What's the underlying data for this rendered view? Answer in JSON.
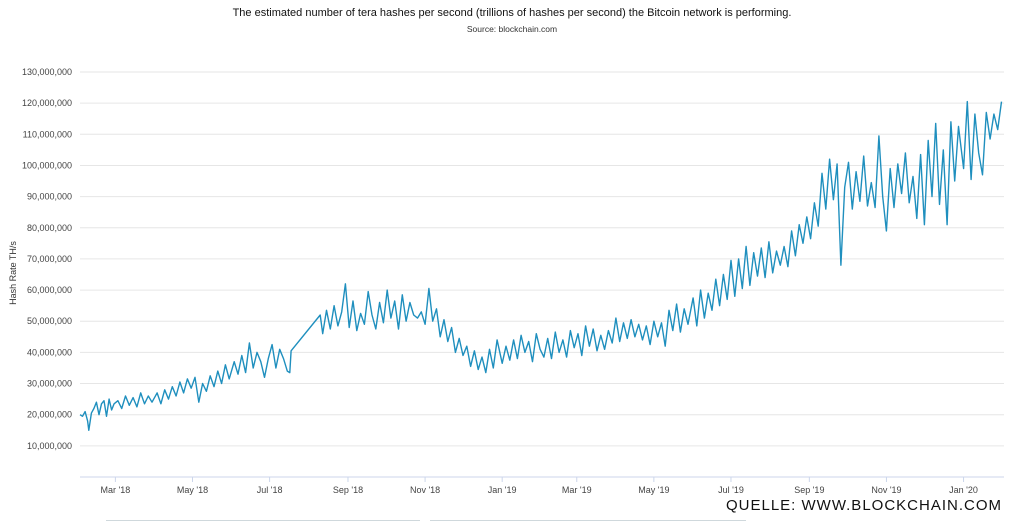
{
  "chart_data": {
    "type": "line",
    "title": "The estimated number of tera hashes per second (trillions of hashes per second) the Bitcoin network is performing.",
    "subtitle": "Source: blockchain.com",
    "ylabel": "Hash Rate TH/s",
    "xlabel": "",
    "ylim": [
      0,
      130000000
    ],
    "yticks": [
      "10,000,000",
      "20,000,000",
      "30,000,000",
      "40,000,000",
      "50,000,000",
      "60,000,000",
      "70,000,000",
      "80,000,000",
      "90,000,000",
      "100,000,000",
      "110,000,000",
      "120,000,000",
      "130,000,000"
    ],
    "ytick_values": [
      10000000,
      20000000,
      30000000,
      40000000,
      50000000,
      60000000,
      70000000,
      80000000,
      90000000,
      100000000,
      110000000,
      120000000,
      130000000
    ],
    "xticks": [
      "Mar '18",
      "May '18",
      "Jul '18",
      "Sep '18",
      "Nov '18",
      "Jan '19",
      "Mar '19",
      "May '19",
      "Jul '19",
      "Sep '19",
      "Nov '19",
      "Jan '20"
    ],
    "xtick_dates": [
      "2018-03-01",
      "2018-05-01",
      "2018-07-01",
      "2018-09-01",
      "2018-11-01",
      "2019-01-01",
      "2019-03-01",
      "2019-05-01",
      "2019-07-01",
      "2019-09-01",
      "2019-11-01",
      "2020-01-01"
    ],
    "xlim": [
      "2018-02-01",
      "2020-02-02"
    ],
    "grid": true,
    "color": "#1f8fbe",
    "series": [
      {
        "values": [
          [
            "2018-02-01",
            20000000
          ],
          [
            "2018-02-03",
            19500000
          ],
          [
            "2018-02-05",
            21000000
          ],
          [
            "2018-02-07",
            18000000
          ],
          [
            "2018-02-08",
            15000000
          ],
          [
            "2018-02-10",
            20500000
          ],
          [
            "2018-02-12",
            22000000
          ],
          [
            "2018-02-14",
            24000000
          ],
          [
            "2018-02-16",
            20000000
          ],
          [
            "2018-02-18",
            23500000
          ],
          [
            "2018-02-20",
            24500000
          ],
          [
            "2018-02-22",
            19500000
          ],
          [
            "2018-02-24",
            25000000
          ],
          [
            "2018-02-26",
            21500000
          ],
          [
            "2018-02-28",
            23500000
          ],
          [
            "2018-03-03",
            24500000
          ],
          [
            "2018-03-06",
            22000000
          ],
          [
            "2018-03-09",
            26000000
          ],
          [
            "2018-03-12",
            23000000
          ],
          [
            "2018-03-15",
            25500000
          ],
          [
            "2018-03-18",
            22500000
          ],
          [
            "2018-03-21",
            27000000
          ],
          [
            "2018-03-24",
            23500000
          ],
          [
            "2018-03-27",
            26000000
          ],
          [
            "2018-03-30",
            24000000
          ],
          [
            "2018-04-03",
            27000000
          ],
          [
            "2018-04-06",
            23500000
          ],
          [
            "2018-04-09",
            28000000
          ],
          [
            "2018-04-12",
            25000000
          ],
          [
            "2018-04-15",
            29000000
          ],
          [
            "2018-04-18",
            26000000
          ],
          [
            "2018-04-21",
            30500000
          ],
          [
            "2018-04-24",
            27000000
          ],
          [
            "2018-04-27",
            31500000
          ],
          [
            "2018-04-30",
            28500000
          ],
          [
            "2018-05-03",
            32000000
          ],
          [
            "2018-05-06",
            24000000
          ],
          [
            "2018-05-09",
            30000000
          ],
          [
            "2018-05-12",
            27500000
          ],
          [
            "2018-05-15",
            32500000
          ],
          [
            "2018-05-18",
            29000000
          ],
          [
            "2018-05-21",
            34000000
          ],
          [
            "2018-05-24",
            30000000
          ],
          [
            "2018-05-27",
            36000000
          ],
          [
            "2018-05-30",
            31500000
          ],
          [
            "2018-06-03",
            37000000
          ],
          [
            "2018-06-06",
            33000000
          ],
          [
            "2018-06-09",
            39000000
          ],
          [
            "2018-06-12",
            33500000
          ],
          [
            "2018-06-15",
            43000000
          ],
          [
            "2018-06-18",
            35000000
          ],
          [
            "2018-06-21",
            40000000
          ],
          [
            "2018-06-24",
            37000000
          ],
          [
            "2018-06-27",
            32000000
          ],
          [
            "2018-06-30",
            38000000
          ],
          [
            "2018-07-03",
            42500000
          ],
          [
            "2018-07-06",
            35000000
          ],
          [
            "2018-07-09",
            41000000
          ],
          [
            "2018-07-12",
            38000000
          ],
          [
            "2018-07-15",
            34000000
          ],
          [
            "2018-07-17",
            33500000
          ],
          [
            "2018-07-18",
            40500000
          ],
          [
            "2018-08-10",
            52000000
          ],
          [
            "2018-08-12",
            46000000
          ],
          [
            "2018-08-15",
            53500000
          ],
          [
            "2018-08-18",
            47500000
          ],
          [
            "2018-08-21",
            55000000
          ],
          [
            "2018-08-24",
            48500000
          ],
          [
            "2018-08-27",
            53000000
          ],
          [
            "2018-08-30",
            62000000
          ],
          [
            "2018-09-02",
            48000000
          ],
          [
            "2018-09-05",
            56500000
          ],
          [
            "2018-09-08",
            47000000
          ],
          [
            "2018-09-11",
            52500000
          ],
          [
            "2018-09-14",
            49000000
          ],
          [
            "2018-09-17",
            59500000
          ],
          [
            "2018-09-20",
            52000000
          ],
          [
            "2018-09-23",
            47500000
          ],
          [
            "2018-09-26",
            56000000
          ],
          [
            "2018-09-29",
            49500000
          ],
          [
            "2018-10-02",
            60000000
          ],
          [
            "2018-10-05",
            51000000
          ],
          [
            "2018-10-08",
            56500000
          ],
          [
            "2018-10-11",
            47500000
          ],
          [
            "2018-10-14",
            58500000
          ],
          [
            "2018-10-17",
            50000000
          ],
          [
            "2018-10-20",
            56000000
          ],
          [
            "2018-10-23",
            52000000
          ],
          [
            "2018-10-26",
            51000000
          ],
          [
            "2018-10-29",
            53000000
          ],
          [
            "2018-11-01",
            49000000
          ],
          [
            "2018-11-04",
            60500000
          ],
          [
            "2018-11-07",
            50000000
          ],
          [
            "2018-11-10",
            54000000
          ],
          [
            "2018-11-13",
            45000000
          ],
          [
            "2018-11-16",
            50500000
          ],
          [
            "2018-11-19",
            43500000
          ],
          [
            "2018-11-22",
            48000000
          ],
          [
            "2018-11-25",
            40000000
          ],
          [
            "2018-11-28",
            44500000
          ],
          [
            "2018-12-01",
            39000000
          ],
          [
            "2018-12-04",
            42000000
          ],
          [
            "2018-12-07",
            35500000
          ],
          [
            "2018-12-10",
            40500000
          ],
          [
            "2018-12-13",
            34500000
          ],
          [
            "2018-12-16",
            38500000
          ],
          [
            "2018-12-19",
            33500000
          ],
          [
            "2018-12-22",
            41000000
          ],
          [
            "2018-12-25",
            35000000
          ],
          [
            "2018-12-28",
            44000000
          ],
          [
            "2019-01-01",
            36500000
          ],
          [
            "2019-01-04",
            42000000
          ],
          [
            "2019-01-07",
            37500000
          ],
          [
            "2019-01-10",
            44000000
          ],
          [
            "2019-01-13",
            38000000
          ],
          [
            "2019-01-16",
            45500000
          ],
          [
            "2019-01-19",
            40000000
          ],
          [
            "2019-01-22",
            43500000
          ],
          [
            "2019-01-25",
            37000000
          ],
          [
            "2019-01-28",
            46000000
          ],
          [
            "2019-01-31",
            41000000
          ],
          [
            "2019-02-03",
            38500000
          ],
          [
            "2019-02-06",
            44500000
          ],
          [
            "2019-02-09",
            38000000
          ],
          [
            "2019-02-12",
            46500000
          ],
          [
            "2019-02-15",
            40000000
          ],
          [
            "2019-02-18",
            44000000
          ],
          [
            "2019-02-21",
            38500000
          ],
          [
            "2019-02-24",
            47000000
          ],
          [
            "2019-02-27",
            41500000
          ],
          [
            "2019-03-02",
            46000000
          ],
          [
            "2019-03-05",
            39000000
          ],
          [
            "2019-03-08",
            48500000
          ],
          [
            "2019-03-11",
            42000000
          ],
          [
            "2019-03-14",
            47500000
          ],
          [
            "2019-03-17",
            40500000
          ],
          [
            "2019-03-20",
            45500000
          ],
          [
            "2019-03-23",
            41000000
          ],
          [
            "2019-03-26",
            47000000
          ],
          [
            "2019-03-29",
            43000000
          ],
          [
            "2019-04-01",
            51000000
          ],
          [
            "2019-04-04",
            43500000
          ],
          [
            "2019-04-07",
            49500000
          ],
          [
            "2019-04-10",
            44500000
          ],
          [
            "2019-04-13",
            50500000
          ],
          [
            "2019-04-16",
            45000000
          ],
          [
            "2019-04-19",
            49000000
          ],
          [
            "2019-04-22",
            44000000
          ],
          [
            "2019-04-25",
            48500000
          ],
          [
            "2019-04-28",
            42500000
          ],
          [
            "2019-05-01",
            50000000
          ],
          [
            "2019-05-04",
            45000000
          ],
          [
            "2019-05-07",
            49500000
          ],
          [
            "2019-05-10",
            42000000
          ],
          [
            "2019-05-13",
            53500000
          ],
          [
            "2019-05-16",
            47000000
          ],
          [
            "2019-05-19",
            55500000
          ],
          [
            "2019-05-22",
            46500000
          ],
          [
            "2019-05-25",
            54000000
          ],
          [
            "2019-05-28",
            49000000
          ],
          [
            "2019-06-01",
            57500000
          ],
          [
            "2019-06-04",
            48500000
          ],
          [
            "2019-06-07",
            60000000
          ],
          [
            "2019-06-10",
            51000000
          ],
          [
            "2019-06-13",
            59000000
          ],
          [
            "2019-06-16",
            53500000
          ],
          [
            "2019-06-19",
            63500000
          ],
          [
            "2019-06-22",
            55000000
          ],
          [
            "2019-06-25",
            65000000
          ],
          [
            "2019-06-28",
            57000000
          ],
          [
            "2019-07-01",
            69500000
          ],
          [
            "2019-07-04",
            58000000
          ],
          [
            "2019-07-07",
            70000000
          ],
          [
            "2019-07-10",
            60500000
          ],
          [
            "2019-07-13",
            74000000
          ],
          [
            "2019-07-16",
            61500000
          ],
          [
            "2019-07-19",
            72000000
          ],
          [
            "2019-07-22",
            64500000
          ],
          [
            "2019-07-25",
            73500000
          ],
          [
            "2019-07-28",
            64000000
          ],
          [
            "2019-07-31",
            75500000
          ],
          [
            "2019-08-03",
            65500000
          ],
          [
            "2019-08-06",
            72500000
          ],
          [
            "2019-08-09",
            68000000
          ],
          [
            "2019-08-12",
            74000000
          ],
          [
            "2019-08-15",
            67500000
          ],
          [
            "2019-08-18",
            79000000
          ],
          [
            "2019-08-21",
            71000000
          ],
          [
            "2019-08-24",
            81000000
          ],
          [
            "2019-08-27",
            75000000
          ],
          [
            "2019-08-30",
            83500000
          ],
          [
            "2019-09-02",
            76500000
          ],
          [
            "2019-09-05",
            88000000
          ],
          [
            "2019-09-08",
            80500000
          ],
          [
            "2019-09-11",
            97500000
          ],
          [
            "2019-09-14",
            86000000
          ],
          [
            "2019-09-17",
            102000000
          ],
          [
            "2019-09-20",
            89000000
          ],
          [
            "2019-09-23",
            100500000
          ],
          [
            "2019-09-26",
            68000000
          ],
          [
            "2019-09-29",
            93000000
          ],
          [
            "2019-10-02",
            101000000
          ],
          [
            "2019-10-05",
            86000000
          ],
          [
            "2019-10-08",
            98000000
          ],
          [
            "2019-10-11",
            88500000
          ],
          [
            "2019-10-14",
            103000000
          ],
          [
            "2019-10-17",
            87000000
          ],
          [
            "2019-10-20",
            94500000
          ],
          [
            "2019-10-23",
            86500000
          ],
          [
            "2019-10-26",
            109500000
          ],
          [
            "2019-10-29",
            90000000
          ],
          [
            "2019-11-01",
            79000000
          ],
          [
            "2019-11-04",
            99000000
          ],
          [
            "2019-11-07",
            86500000
          ],
          [
            "2019-11-10",
            100500000
          ],
          [
            "2019-11-13",
            91000000
          ],
          [
            "2019-11-16",
            104000000
          ],
          [
            "2019-11-19",
            88000000
          ],
          [
            "2019-11-22",
            96500000
          ],
          [
            "2019-11-25",
            83000000
          ],
          [
            "2019-11-28",
            103500000
          ],
          [
            "2019-12-01",
            81000000
          ],
          [
            "2019-12-04",
            108000000
          ],
          [
            "2019-12-07",
            90000000
          ],
          [
            "2019-12-10",
            113500000
          ],
          [
            "2019-12-13",
            87500000
          ],
          [
            "2019-12-16",
            105000000
          ],
          [
            "2019-12-19",
            81000000
          ],
          [
            "2019-12-22",
            114000000
          ],
          [
            "2019-12-25",
            95000000
          ],
          [
            "2019-12-28",
            112500000
          ],
          [
            "2020-01-01",
            99000000
          ],
          [
            "2020-01-04",
            120500000
          ],
          [
            "2020-01-07",
            95500000
          ],
          [
            "2020-01-10",
            116500000
          ],
          [
            "2020-01-13",
            104000000
          ],
          [
            "2020-01-16",
            97000000
          ],
          [
            "2020-01-19",
            117000000
          ],
          [
            "2020-01-22",
            108500000
          ],
          [
            "2020-01-25",
            116500000
          ],
          [
            "2020-01-28",
            111500000
          ],
          [
            "2020-01-31",
            120500000
          ]
        ]
      }
    ]
  },
  "watermark": "QUELLE: WWW.BLOCKCHAIN.COM"
}
